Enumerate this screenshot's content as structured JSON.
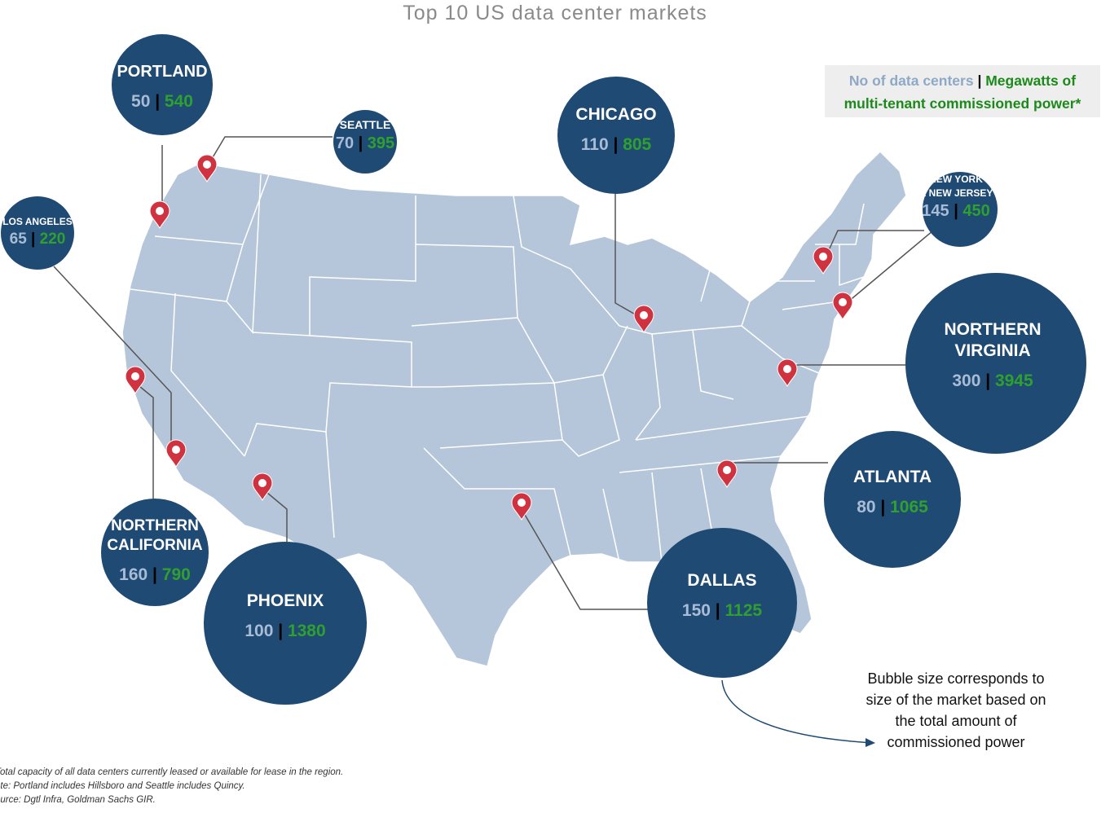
{
  "title": "Top 10 US data center markets",
  "legend": {
    "count_label": "No of data centers",
    "separator": " | ",
    "power_label_line1": "Megawatts of",
    "power_label_line2": "multi-tenant commissioned power*"
  },
  "markets": [
    {
      "name": "PORTLAND",
      "count": "50",
      "mw": "540"
    },
    {
      "name": "SEATTLE",
      "count": "70",
      "mw": "395"
    },
    {
      "name": "LOS ANGELES",
      "count": "65",
      "mw": "220"
    },
    {
      "name": "CHICAGO",
      "count": "110",
      "mw": "805"
    },
    {
      "name": "NEW YORK & NEW JERSEY",
      "count": "145",
      "mw": "450"
    },
    {
      "name": "NORTHERN VIRGINIA",
      "count": "300",
      "mw": "3945"
    },
    {
      "name": "ATLANTA",
      "count": "80",
      "mw": "1065"
    },
    {
      "name": "DALLAS",
      "count": "150",
      "mw": "1125"
    },
    {
      "name": "PHOENIX",
      "count": "100",
      "mw": "1380"
    },
    {
      "name": "NORTHERN CALIFORNIA",
      "count": "160",
      "mw": "790"
    }
  ],
  "note": "Bubble size corresponds to size of the market based on the total amount of commissioned power",
  "footnotes": [
    "Total capacity of all data centers currently leased or available for lease in the region.",
    "ote: Portland includes Hillsboro and Seattle includes Quincy.",
    "ource: Dgtl Infra, Goldman Sachs GIR."
  ],
  "colors": {
    "bubble": "#1f4a73",
    "land": "#b6c6da",
    "pin": "#d0333f",
    "count_text": "#a9bcd6",
    "mw_text": "#2fa02f"
  }
}
